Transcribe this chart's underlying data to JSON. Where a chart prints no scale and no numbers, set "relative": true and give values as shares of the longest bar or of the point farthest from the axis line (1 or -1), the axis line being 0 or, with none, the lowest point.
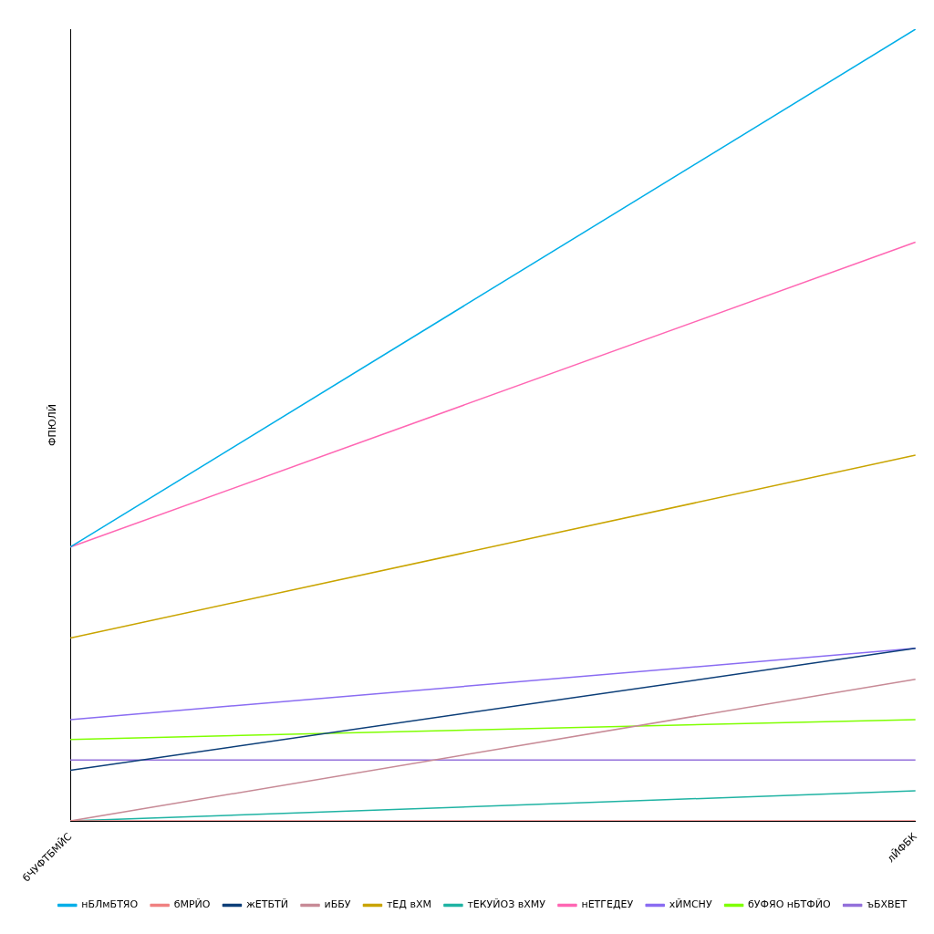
{
  "chart_data": {
    "type": "line",
    "ylabel": "ФПЮЛЙ",
    "categories": [
      "бЧУФТБМЙС",
      "лЙФБК"
    ],
    "relative": true,
    "legend": "bottom",
    "marker": "none",
    "line_style": "solid",
    "series": [
      {
        "name": "нБЛмБТЯО",
        "color": "#00aee8",
        "values": [
          0.346,
          1
        ]
      },
      {
        "name": "бМРЙО",
        "color": "#f08080",
        "values": [
          0,
          0
        ]
      },
      {
        "name": "жЕТБТЙ",
        "color": "#0c3e78",
        "values": [
          0.064,
          0.218
        ]
      },
      {
        "name": "иББУ",
        "color": "#c78a96",
        "values": [
          0,
          0.179
        ]
      },
      {
        "name": "тЕД вХМ",
        "color": "#c9a400",
        "values": [
          0.231,
          0.462
        ]
      },
      {
        "name": "тЕКУЙОЗ вХМУ",
        "color": "#1fb3a3",
        "values": [
          0,
          0.038
        ]
      },
      {
        "name": "нЕТГЕДЕУ",
        "color": "#ff66b3",
        "values": [
          0.346,
          0.731
        ]
      },
      {
        "name": "хЙМСНУ",
        "color": "#8a6cf2",
        "values": [
          0.128,
          0.218
        ]
      },
      {
        "name": "бУФЯО нБТФЙО",
        "color": "#7fff00",
        "values": [
          0.103,
          0.128
        ]
      },
      {
        "name": "ъБХВЕТ",
        "color": "#9370db",
        "values": [
          0.077,
          0.077
        ]
      }
    ]
  }
}
